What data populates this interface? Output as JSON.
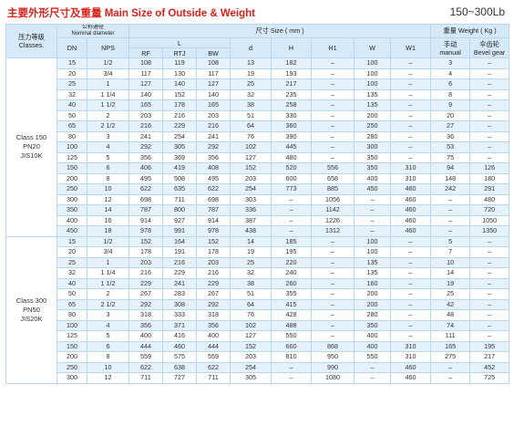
{
  "header": {
    "title": "主要外形尺寸及重量 Main Size of Outside & Weight",
    "range": "150~300Lb"
  },
  "columns": {
    "class_label_cn": "压力等级",
    "class_label_en": "Classes.",
    "nominal_cn": "公称通径",
    "nominal_en": "Nominal diameter",
    "dn": "DN",
    "nps": "NPS",
    "size_group": "尺寸 Size ( mm )",
    "l": "L",
    "rf": "RF",
    "rtj": "RTJ",
    "bw": "BW",
    "d": "d",
    "h": "H",
    "h1": "H1",
    "w": "W",
    "w1": "W1",
    "weight_group": "重量 Weight ( Kg )",
    "manual_cn": "手动",
    "manual_en": "manual",
    "bevel_cn": "伞齿轮",
    "bevel_en": "Bevel gear"
  },
  "groups": [
    {
      "class_line1": "Class 150",
      "class_line2": "PN20",
      "class_line3": "JIS10K",
      "rows": [
        [
          "15",
          "1/2",
          "108",
          "119",
          "108",
          "13",
          "182",
          "–",
          "100",
          "–",
          "3",
          "–"
        ],
        [
          "20",
          "3/4",
          "117",
          "130",
          "117",
          "19",
          "193",
          "–",
          "100",
          "–",
          "4",
          "–"
        ],
        [
          "25",
          "1",
          "127",
          "140",
          "127",
          "25",
          "217",
          "–",
          "100",
          "–",
          "6",
          "–"
        ],
        [
          "32",
          "1 1/4",
          "140",
          "152",
          "140",
          "32",
          "235",
          "–",
          "135",
          "–",
          "8",
          "–"
        ],
        [
          "40",
          "1 1/2",
          "165",
          "178",
          "165",
          "38",
          "258",
          "–",
          "135",
          "–",
          "9",
          "–"
        ],
        [
          "50",
          "2",
          "203",
          "216",
          "203",
          "51",
          "330",
          "–",
          "200",
          "–",
          "20",
          "–"
        ],
        [
          "65",
          "2 1/2",
          "216",
          "229",
          "216",
          "64",
          "360",
          "–",
          "250",
          "–",
          "27",
          "–"
        ],
        [
          "80",
          "3",
          "241",
          "254",
          "241",
          "76",
          "390",
          "–",
          "280",
          "–",
          "36",
          "–"
        ],
        [
          "100",
          "4",
          "292",
          "305",
          "292",
          "102",
          "445",
          "–",
          "300",
          "–",
          "53",
          "–"
        ],
        [
          "125",
          "5",
          "356",
          "369",
          "356",
          "127",
          "480",
          "–",
          "350",
          "–",
          "75",
          "–"
        ],
        [
          "150",
          "6",
          "406",
          "419",
          "408",
          "152",
          "520",
          "556",
          "350",
          "310",
          "94",
          "126"
        ],
        [
          "200",
          "8",
          "495",
          "508",
          "495",
          "203",
          "600",
          "658",
          "400",
          "310",
          "148",
          "180"
        ],
        [
          "250",
          "10",
          "622",
          "635",
          "622",
          "254",
          "773",
          "885",
          "450",
          "460",
          "242",
          "291"
        ],
        [
          "300",
          "12",
          "698",
          "711",
          "698",
          "303",
          "–",
          "1056",
          "–",
          "460",
          "–",
          "480"
        ],
        [
          "350",
          "14",
          "787",
          "800",
          "787",
          "336",
          "–",
          "1142",
          "–",
          "460",
          "–",
          "720"
        ],
        [
          "400",
          "16",
          "914",
          "927",
          "914",
          "387",
          "–",
          "1226",
          "–",
          "460",
          "–",
          "1050"
        ],
        [
          "450",
          "18",
          "978",
          "991",
          "978",
          "438",
          "–",
          "1312",
          "–",
          "460",
          "–",
          "1350"
        ]
      ]
    },
    {
      "class_line1": "Class 300",
      "class_line2": "PN50",
      "class_line3": "JIS20K",
      "rows": [
        [
          "15",
          "1/2",
          "152",
          "164",
          "152",
          "14",
          "185",
          "–",
          "100",
          "–",
          "5",
          "–"
        ],
        [
          "20",
          "3/4",
          "178",
          "191",
          "178",
          "19",
          "195",
          "–",
          "100",
          "–",
          "7",
          "–"
        ],
        [
          "25",
          "1",
          "203",
          "216",
          "203",
          "25",
          "220",
          "–",
          "135",
          "–",
          "10",
          "–"
        ],
        [
          "32",
          "1 1/4",
          "216",
          "229",
          "216",
          "32",
          "240",
          "–",
          "135",
          "–",
          "14",
          "–"
        ],
        [
          "40",
          "1 1/2",
          "229",
          "241",
          "229",
          "38",
          "260",
          "–",
          "160",
          "–",
          "19",
          "–"
        ],
        [
          "50",
          "2",
          "267",
          "283",
          "267",
          "51",
          "355",
          "–",
          "200",
          "–",
          "25",
          "–"
        ],
        [
          "65",
          "2 1/2",
          "292",
          "308",
          "292",
          "64",
          "415",
          "–",
          "200",
          "–",
          "42",
          "–"
        ],
        [
          "80",
          "3",
          "318",
          "333",
          "318",
          "76",
          "428",
          "–",
          "280",
          "–",
          "48",
          "–"
        ],
        [
          "100",
          "4",
          "356",
          "371",
          "356",
          "102",
          "488",
          "–",
          "350",
          "–",
          "74",
          "–"
        ],
        [
          "125",
          "5",
          "400",
          "416",
          "400",
          "127",
          "550",
          "–",
          "400",
          "–",
          "111",
          "–"
        ],
        [
          "150",
          "6",
          "444",
          "460",
          "444",
          "152",
          "660",
          "868",
          "400",
          "310",
          "165",
          "195"
        ],
        [
          "200",
          "8",
          "559",
          "575",
          "559",
          "203",
          "810",
          "950",
          "550",
          "310",
          "275",
          "217"
        ],
        [
          "250",
          "10",
          "622",
          "638",
          "622",
          "254",
          "–",
          "990",
          "–",
          "460",
          "–",
          "452"
        ],
        [
          "300",
          "12",
          "711",
          "727",
          "711",
          "305",
          "–",
          "1080",
          "–",
          "460",
          "–",
          "725"
        ]
      ]
    }
  ]
}
